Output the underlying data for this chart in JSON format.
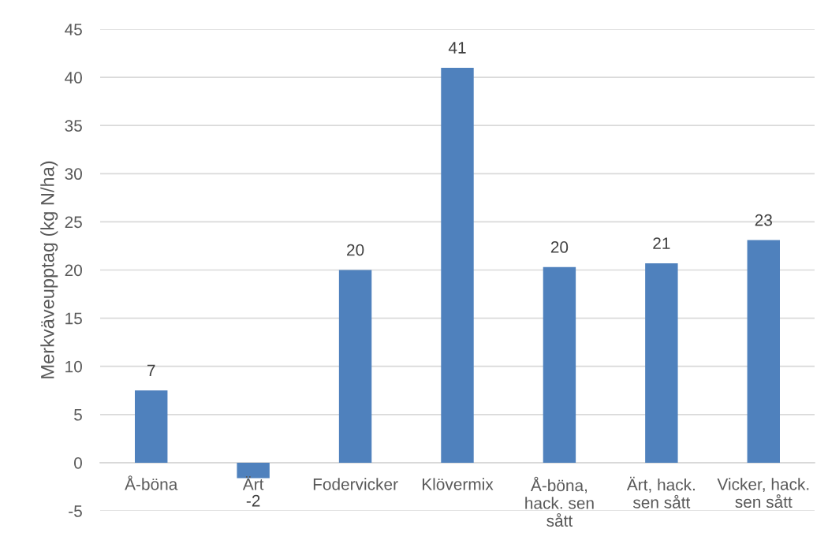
{
  "chart_data": {
    "type": "bar",
    "ylabel": "Merkväveupptag (kg N/ha)",
    "categories": [
      "Å-böna",
      "Ärt",
      "Fodervicker",
      "Klövermix",
      "Å-böna,\nhack. sen\nsått",
      "Ärt, hack.\nsen sått",
      "Vicker, hack.\nsen sått"
    ],
    "values": [
      7.5,
      -1.6,
      20.0,
      41.0,
      20.3,
      20.7,
      23.1
    ],
    "color": "#4f81bd",
    "value_labels": [
      "7",
      "-2",
      "20",
      "41",
      "20",
      "21",
      "23"
    ],
    "ylim": [
      -5,
      45
    ],
    "yticks": [
      -5,
      0,
      5,
      10,
      15,
      20,
      25,
      30,
      35,
      40,
      45
    ],
    "grid": "y"
  }
}
